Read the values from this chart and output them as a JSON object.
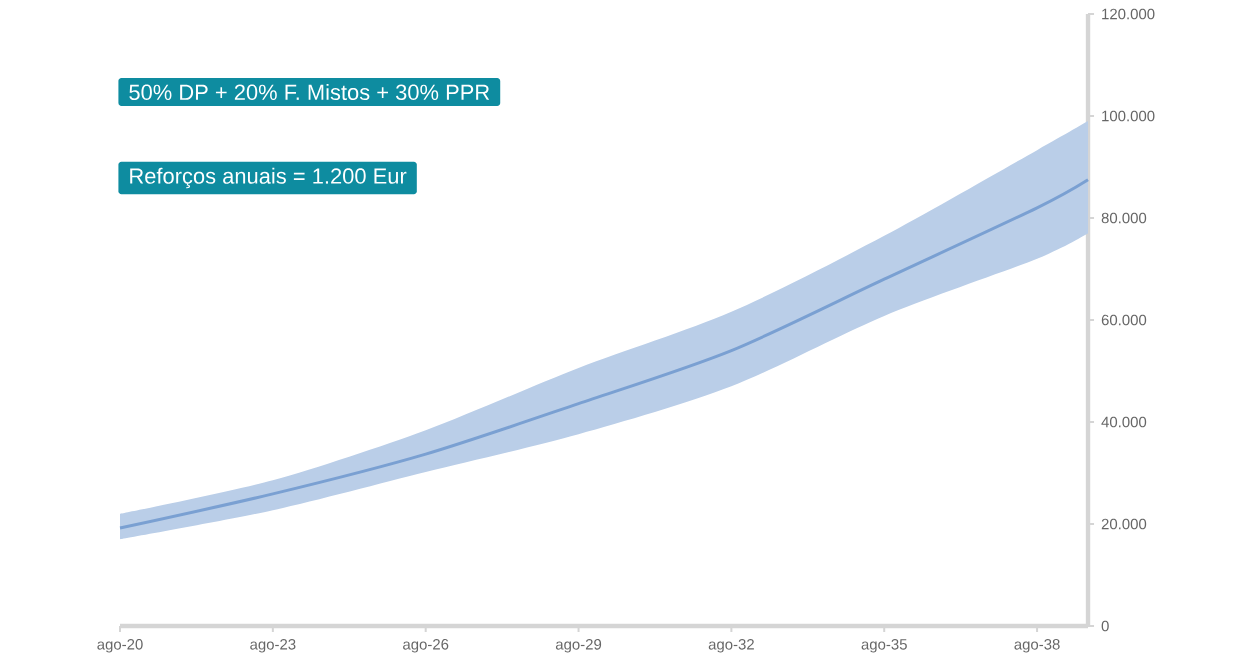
{
  "chart_data": {
    "type": "line",
    "annotations": [
      "50% DP + 20% F. Mistos + 30% PPR",
      "Reforços anuais = 1.200 Eur"
    ],
    "x": [
      "2020-08",
      "2023-08",
      "2026-08",
      "2029-08",
      "2032-08",
      "2035-08",
      "2038-08",
      "2039-08"
    ],
    "series": [
      {
        "color": "#7aa0d2",
        "values": [
          19200,
          25900,
          33700,
          43600,
          54000,
          68000,
          82000,
          87500
        ],
        "lower": [
          17000,
          22700,
          30200,
          37600,
          47000,
          60800,
          72000,
          77000
        ],
        "upper": [
          22000,
          28600,
          38400,
          50600,
          61600,
          76500,
          93300,
          99000
        ]
      }
    ],
    "xlim": [
      "2020-08",
      "2039-08"
    ],
    "xticks": [
      {
        "value": "2020-08",
        "label": "ago-20"
      },
      {
        "value": "2023-08",
        "label": "ago-23"
      },
      {
        "value": "2026-08",
        "label": "ago-26"
      },
      {
        "value": "2029-08",
        "label": "ago-29"
      },
      {
        "value": "2032-08",
        "label": "ago-32"
      },
      {
        "value": "2035-08",
        "label": "ago-35"
      },
      {
        "value": "2038-08",
        "label": "ago-38"
      }
    ],
    "ylim": [
      0,
      120000
    ],
    "yticks": [
      0,
      {
        "value": 20000,
        "label": "20.000"
      },
      {
        "value": 40000,
        "label": "40.000"
      },
      {
        "value": 60000,
        "label": "60.000"
      },
      {
        "value": 80000,
        "label": "80.000"
      },
      {
        "value": 100000,
        "label": "100.000"
      },
      {
        "value": 120000,
        "label": "120.000"
      }
    ],
    "grid": false,
    "marker": "none",
    "line_style": "solid"
  }
}
